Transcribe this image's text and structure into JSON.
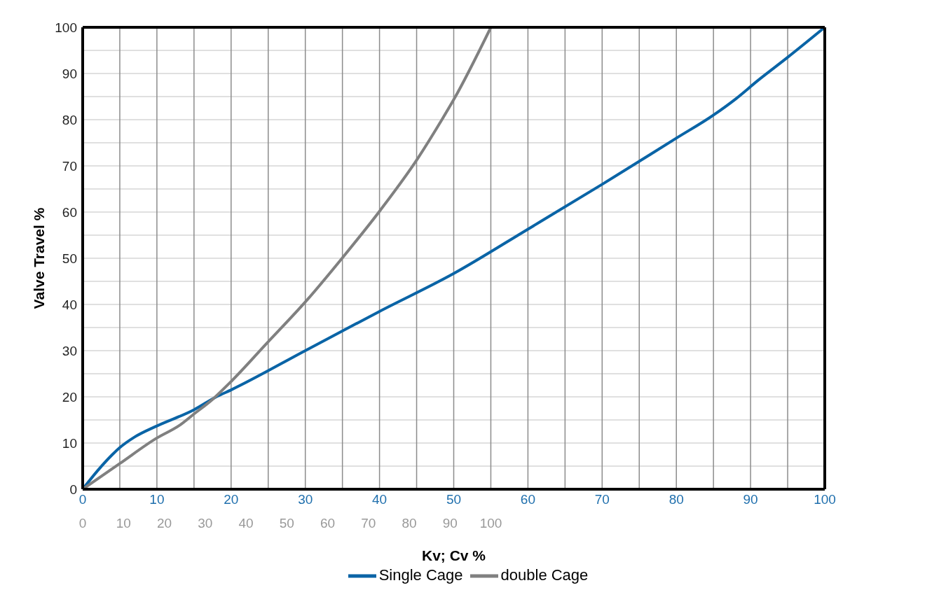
{
  "chart_data": {
    "type": "line",
    "xlabel": "Kv; Cv %",
    "ylabel": "Valve Travel %",
    "xlim": [
      0,
      100
    ],
    "xticks": [
      0,
      {
        "value": 5,
        "label": null
      },
      10,
      {
        "value": 15,
        "label": null
      },
      20,
      {
        "value": 25,
        "label": null
      },
      30,
      {
        "value": 35,
        "label": null
      },
      40,
      {
        "value": 45,
        "label": null
      },
      50,
      {
        "value": 55,
        "label": null
      },
      60,
      {
        "value": 65,
        "label": null
      },
      70,
      {
        "value": 75,
        "label": null
      },
      80,
      {
        "value": 85,
        "label": null
      },
      90,
      {
        "value": 95,
        "label": null
      },
      100
    ],
    "x2lim": [
      0,
      181.8
    ],
    "x2ticks": [
      0,
      10,
      20,
      30,
      40,
      50,
      60,
      70,
      80,
      90,
      100
    ],
    "ylim": [
      0,
      100
    ],
    "yticks": [
      0,
      {
        "value": 5,
        "label": null
      },
      10,
      {
        "value": 15,
        "label": null
      },
      20,
      {
        "value": 25,
        "label": null
      },
      30,
      {
        "value": 35,
        "label": null
      },
      40,
      {
        "value": 45,
        "label": null
      },
      50,
      {
        "value": 55,
        "label": null
      },
      60,
      {
        "value": 65,
        "label": null
      },
      70,
      {
        "value": 75,
        "label": null
      },
      80,
      {
        "value": 85,
        "label": null
      },
      90,
      {
        "value": 95,
        "label": null
      },
      100
    ],
    "grid": true,
    "legend": "bottom",
    "marker": "none",
    "line_style": "solid",
    "series": [
      {
        "name": "Single Cage",
        "color": "#0a64a6",
        "x": [
          0,
          2,
          4,
          5,
          7,
          10,
          15,
          18,
          20,
          30,
          40,
          50,
          60,
          70,
          80,
          85,
          88,
          91,
          95,
          100
        ],
        "values": [
          0,
          4,
          7.5,
          9,
          11.3,
          13.7,
          17.2,
          20,
          21.5,
          30,
          38.5,
          46.7,
          56.3,
          66,
          76,
          81,
          84.5,
          88.5,
          93.5,
          100
        ]
      },
      {
        "name": "double Cage",
        "color": "#808080",
        "axis": "x2",
        "x": [
          0,
          9,
          18,
          24,
          27,
          32,
          36,
          45,
          55,
          64,
          73,
          82,
          88,
          91,
          100
        ],
        "values": [
          0,
          5.5,
          11,
          14,
          16.1,
          19.6,
          23,
          31.5,
          41,
          50.5,
          60.5,
          71.5,
          80,
          84.5,
          100
        ]
      }
    ]
  }
}
